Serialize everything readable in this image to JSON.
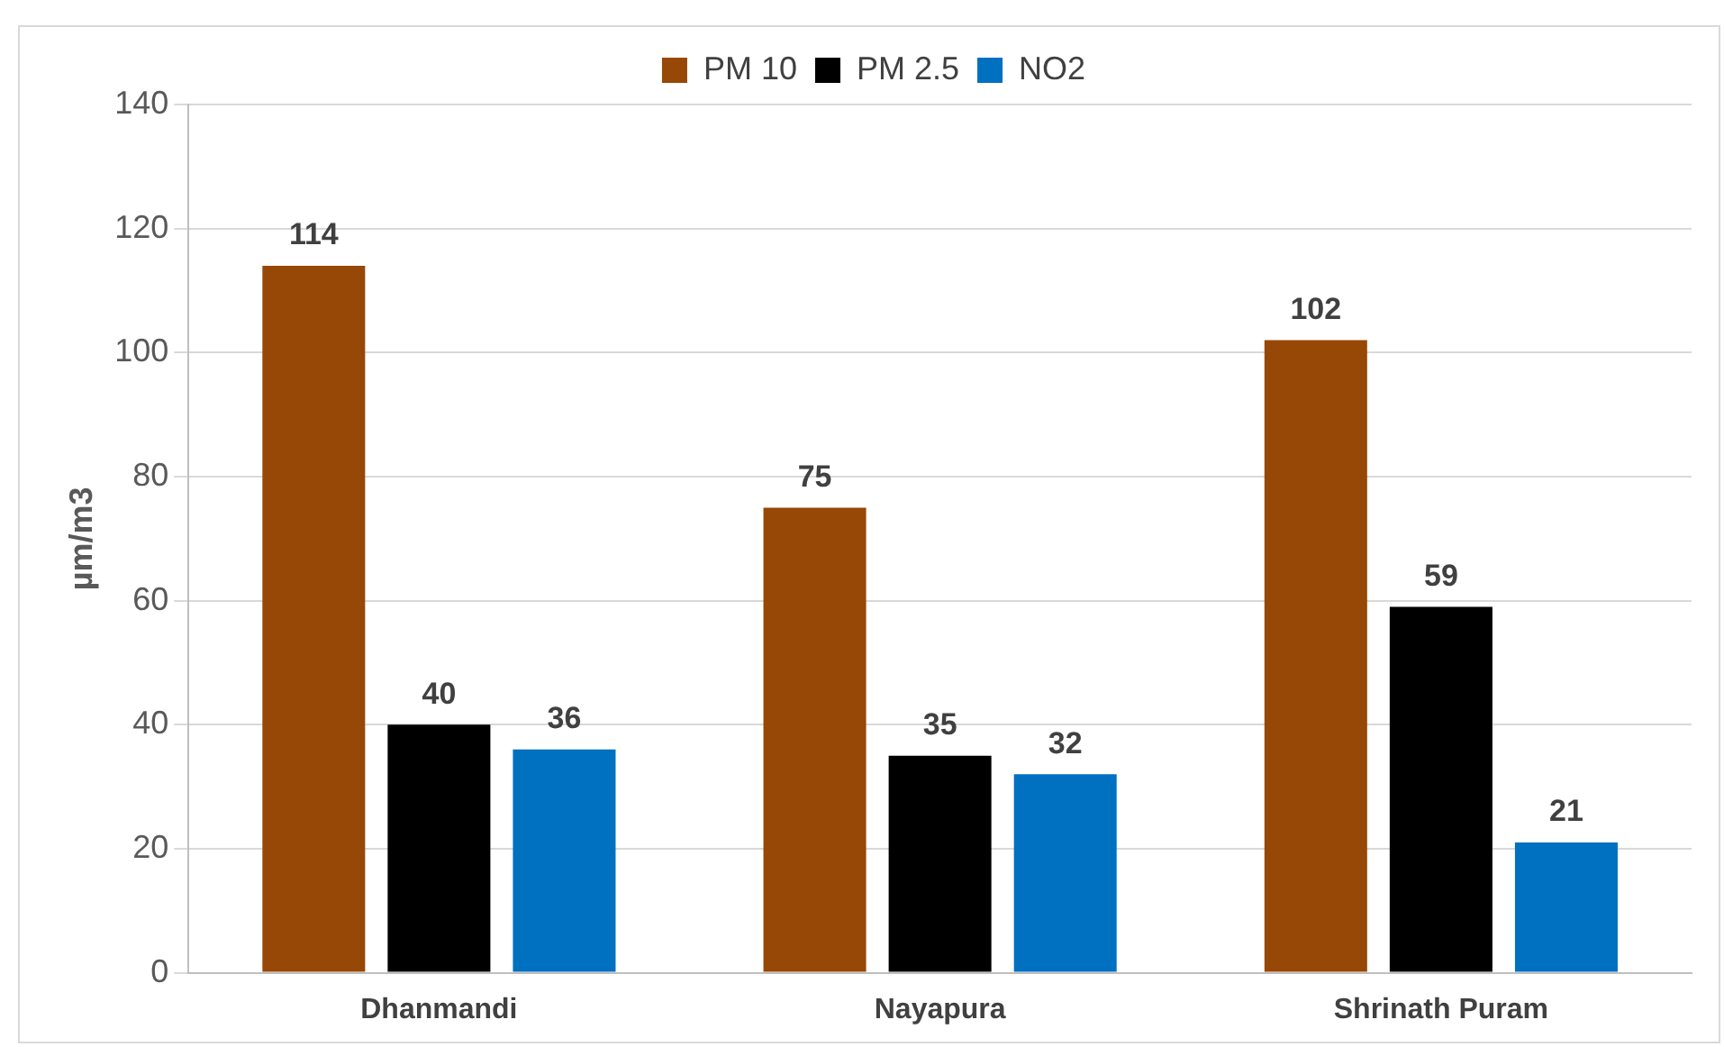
{
  "chart_data": {
    "type": "bar",
    "ylabel": "µm/m3",
    "categories": [
      "Dhanmandi",
      "Nayapura",
      "Shrinath Puram"
    ],
    "series": [
      {
        "name": "PM 10",
        "color": "#974706",
        "values": [
          114,
          75,
          102
        ]
      },
      {
        "name": "PM 2.5",
        "color": "#000000",
        "values": [
          40,
          35,
          59
        ]
      },
      {
        "name": "NO2",
        "color": "#0070c0",
        "values": [
          36,
          32,
          21
        ]
      }
    ],
    "ylim": [
      0,
      140
    ],
    "yticks": [
      0,
      20,
      40,
      60,
      80,
      100,
      120,
      140
    ],
    "grid": "y",
    "legend": "top",
    "data_labels": true
  }
}
